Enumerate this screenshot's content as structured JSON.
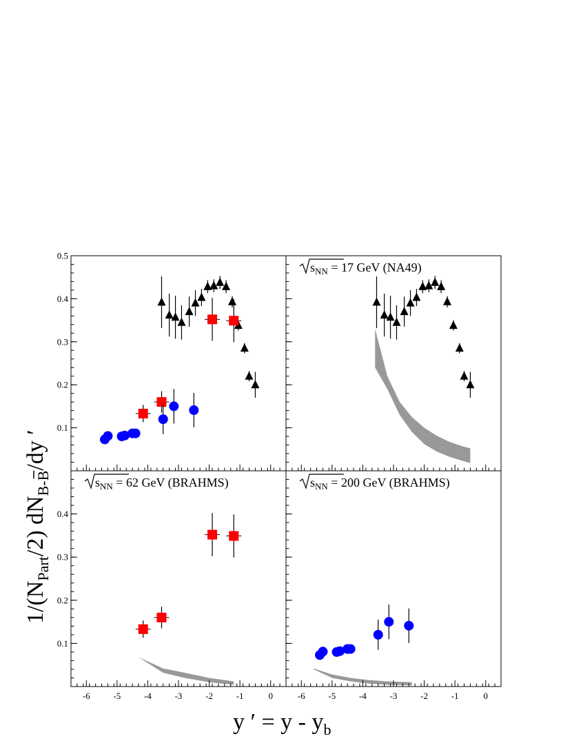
{
  "chart_data": {
    "type": "scatter",
    "xlabel": {
      "main": "y ′ = y - y",
      "sub": "b"
    },
    "ylabel": {
      "p1": "1/(N",
      "sub1": "Part",
      "p2": "/2) dN",
      "sub2": "B-B",
      "p3": "/dy ′"
    },
    "xlim": [
      -6.5,
      0.5
    ],
    "ylim": [
      0,
      0.5
    ],
    "xticks": [
      -6,
      -5,
      -4,
      -3,
      -2,
      -1,
      0
    ],
    "xtick_labels": [
      "-6",
      "-5",
      "-4",
      "-3",
      "-2",
      "-1",
      "0"
    ],
    "yticks": [
      0.1,
      0.2,
      0.3,
      0.4,
      0.5
    ],
    "ytick_labels": [
      "0.1",
      "0.2",
      "0.3",
      "0.4",
      "0.5"
    ],
    "panels": [
      {
        "label": "",
        "show_y_labels": true,
        "show_y_top": true,
        "show_x_labels": false,
        "series": [
          "na49",
          "brahms62",
          "brahms200"
        ],
        "band": null
      },
      {
        "label": {
          "pre": "s",
          "sub": "NN",
          "post": " = 17 GeV (NA49)"
        },
        "show_y_labels": false,
        "show_y_top": false,
        "show_x_labels": false,
        "series": [
          "na49"
        ],
        "band": {
          "upper": [
            [
              -3.6,
              0.33
            ],
            [
              -3.2,
              0.22
            ],
            [
              -2.8,
              0.16
            ],
            [
              -2.4,
              0.125
            ],
            [
              -2.0,
              0.1
            ],
            [
              -1.6,
              0.082
            ],
            [
              -1.2,
              0.068
            ],
            [
              -0.8,
              0.058
            ],
            [
              -0.5,
              0.052
            ]
          ],
          "lower": [
            [
              -3.6,
              0.24
            ],
            [
              -3.2,
              0.19
            ],
            [
              -2.8,
              0.13
            ],
            [
              -2.4,
              0.09
            ],
            [
              -2.0,
              0.062
            ],
            [
              -1.6,
              0.045
            ],
            [
              -1.2,
              0.033
            ],
            [
              -0.8,
              0.024
            ],
            [
              -0.5,
              0.018
            ]
          ]
        }
      },
      {
        "label": {
          "pre": "s",
          "sub": "NN",
          "post": " = 62 GeV (BRAHMS)"
        },
        "show_y_labels": true,
        "show_y_top": false,
        "show_x_labels": true,
        "series": [
          "brahms62"
        ],
        "band": {
          "upper": [
            [
              -4.3,
              0.068
            ],
            [
              -3.5,
              0.042
            ],
            [
              -2.8,
              0.032
            ],
            [
              -2.0,
              0.02
            ],
            [
              -1.2,
              0.012
            ]
          ],
          "lower": [
            [
              -4.3,
              0.068
            ],
            [
              -3.5,
              0.032
            ],
            [
              -2.8,
              0.02
            ],
            [
              -2.0,
              0.01
            ],
            [
              -1.2,
              0.004
            ]
          ]
        }
      },
      {
        "label": {
          "pre": "s",
          "sub": "NN",
          "post": " = 200 GeV (BRAHMS)"
        },
        "show_y_labels": false,
        "show_y_top": false,
        "show_x_labels": true,
        "series": [
          "brahms200"
        ],
        "band": {
          "upper": [
            [
              -5.6,
              0.042
            ],
            [
              -5.0,
              0.028
            ],
            [
              -4.4,
              0.02
            ],
            [
              -3.8,
              0.015
            ],
            [
              -3.2,
              0.012
            ],
            [
              -2.4,
              0.01
            ]
          ],
          "lower": [
            [
              -5.6,
              0.04
            ],
            [
              -5.0,
              0.02
            ],
            [
              -4.4,
              0.012
            ],
            [
              -3.8,
              0.007
            ],
            [
              -3.2,
              0.004
            ],
            [
              -2.4,
              0.003
            ]
          ]
        }
      }
    ],
    "series": {
      "na49": {
        "marker": "triangle",
        "color": "#000000",
        "points": [
          [
            -3.55,
            0.392,
            0.06
          ],
          [
            -3.3,
            0.362,
            0.05
          ],
          [
            -3.1,
            0.357,
            0.05
          ],
          [
            -2.9,
            0.345,
            0.04
          ],
          [
            -2.65,
            0.37,
            0.035
          ],
          [
            -2.45,
            0.39,
            0.03
          ],
          [
            -2.25,
            0.403,
            0.02
          ],
          [
            -2.05,
            0.428,
            0.015
          ],
          [
            -1.85,
            0.43,
            0.015
          ],
          [
            -1.65,
            0.438,
            0.015
          ],
          [
            -1.45,
            0.428,
            0.015
          ],
          [
            -1.25,
            0.393,
            0.013
          ],
          [
            -1.05,
            0.338,
            0.012
          ],
          [
            -0.85,
            0.285,
            0.012
          ],
          [
            -0.7,
            0.22,
            0.012
          ],
          [
            -0.5,
            0.2,
            0.03
          ]
        ]
      },
      "brahms62": {
        "marker": "square",
        "color": "#ff0000",
        "points": [
          [
            -4.15,
            0.133,
            0.02
          ],
          [
            -3.55,
            0.16,
            0.025
          ],
          [
            -1.9,
            0.352,
            0.05
          ],
          [
            -1.2,
            0.349,
            0.05
          ]
        ]
      },
      "brahms200": {
        "marker": "circle",
        "color": "#0000ff",
        "points": [
          [
            -5.4,
            0.073,
            0.01
          ],
          [
            -5.3,
            0.081,
            0.01
          ],
          [
            -4.85,
            0.08,
            0.01
          ],
          [
            -4.75,
            0.082,
            0.01
          ],
          [
            -4.5,
            0.087,
            0.01
          ],
          [
            -4.4,
            0.087,
            0.01
          ],
          [
            -3.5,
            0.12,
            0.035
          ],
          [
            -3.15,
            0.15,
            0.04
          ],
          [
            -2.5,
            0.141,
            0.04
          ]
        ]
      }
    }
  }
}
